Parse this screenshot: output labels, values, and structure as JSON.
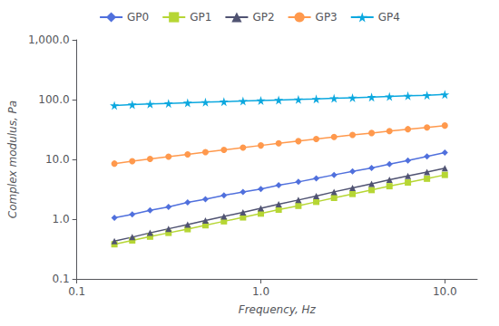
{
  "chart_data": {
    "type": "line",
    "xlabel": "Frequency, Hz",
    "ylabel": "Complex modulus, Pa",
    "log": true,
    "grid": false,
    "legend": "top",
    "xlim": [
      0.1,
      15.0
    ],
    "ylim": [
      0.1,
      1000.0
    ],
    "xticks": [
      0.1,
      {
        "value": 1,
        "label": "1.0"
      },
      {
        "value": 10,
        "label": "10.0"
      }
    ],
    "yticks": [
      0.1,
      {
        "value": 1,
        "label": "1.0"
      },
      {
        "value": 10,
        "label": "10.0"
      },
      {
        "value": 100,
        "label": "100.0"
      },
      {
        "value": 1000,
        "label": "1,000.0"
      }
    ],
    "x": [
      0.16,
      0.2,
      0.25,
      0.315,
      0.4,
      0.5,
      0.63,
      0.8,
      1.0,
      1.25,
      1.6,
      2.0,
      2.5,
      3.15,
      4.0,
      5.0,
      6.3,
      8.0,
      10.0
    ],
    "series": [
      {
        "name": "GP0",
        "marker": "diamond",
        "values": [
          1.05,
          1.2,
          1.4,
          1.6,
          1.9,
          2.15,
          2.5,
          2.85,
          3.2,
          3.7,
          4.2,
          4.8,
          5.5,
          6.3,
          7.2,
          8.3,
          9.6,
          11.2,
          13.0
        ]
      },
      {
        "name": "GP1",
        "marker": "square",
        "values": [
          0.38,
          0.44,
          0.51,
          0.59,
          0.68,
          0.79,
          0.92,
          1.07,
          1.24,
          1.44,
          1.67,
          1.95,
          2.27,
          2.64,
          3.07,
          3.56,
          4.1,
          4.75,
          5.5
        ]
      },
      {
        "name": "GP2",
        "marker": "triangle",
        "values": [
          0.43,
          0.5,
          0.59,
          0.69,
          0.81,
          0.95,
          1.11,
          1.3,
          1.52,
          1.78,
          2.09,
          2.44,
          2.86,
          3.34,
          3.9,
          4.55,
          5.3,
          6.15,
          7.1
        ]
      },
      {
        "name": "GP3",
        "marker": "circle",
        "values": [
          8.5,
          9.3,
          10.2,
          11.1,
          12.1,
          13.2,
          14.4,
          15.7,
          17.1,
          18.6,
          20.2,
          21.9,
          23.7,
          25.6,
          27.6,
          29.8,
          32.0,
          34.3,
          36.8
        ]
      },
      {
        "name": "GP4",
        "marker": "star",
        "values": [
          80.0,
          82.5,
          84.5,
          86.5,
          88.5,
          90.5,
          92.5,
          94.5,
          96.5,
          98.5,
          100.5,
          102.5,
          105.0,
          107.5,
          110.0,
          112.5,
          115.5,
          118.5,
          122.0
        ]
      }
    ]
  }
}
